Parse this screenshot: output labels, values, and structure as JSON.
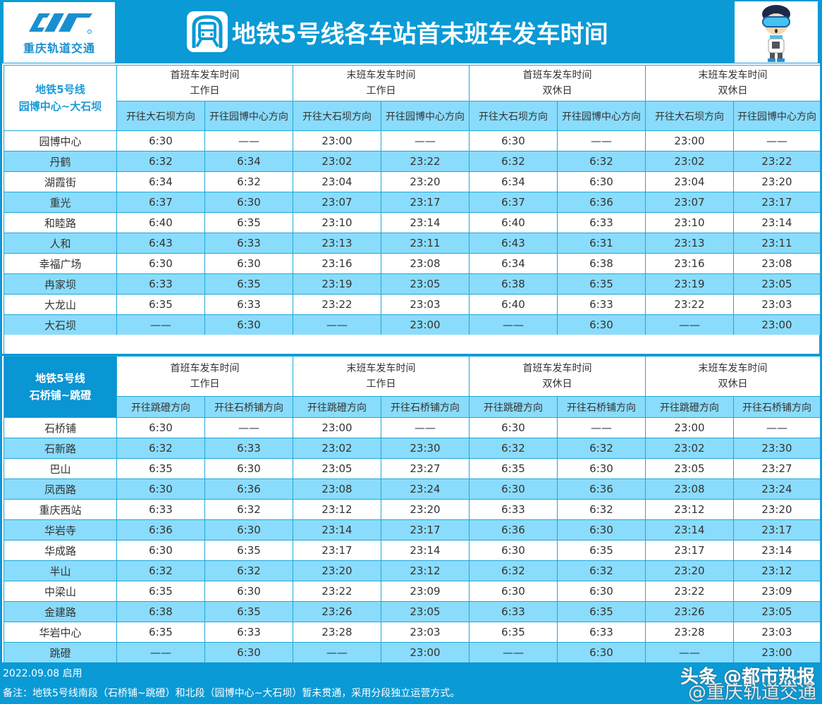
{
  "header": {
    "brand": "重庆轨道交通",
    "title": "地铁5号线各车站首末班车发车时间",
    "logo_icon": "cqrt-logo-icon",
    "title_icon": "metro-train-icon",
    "mascot_icon": "mascot-icon"
  },
  "tables": [
    {
      "line_name": "地铁5号线",
      "segment": "园博中心~大石坝",
      "groups": [
        {
          "label": "首班车发车时间",
          "day": "工作日"
        },
        {
          "label": "末班车发车时间",
          "day": "工作日"
        },
        {
          "label": "首班车发车时间",
          "day": "双休日"
        },
        {
          "label": "末班车发车时间",
          "day": "双休日"
        }
      ],
      "directions": [
        "开往大石坝方向",
        "开往园博中心方向",
        "开往大石坝方向",
        "开往园博中心方向",
        "开往大石坝方向",
        "开往园博中心方向",
        "开往大石坝方向",
        "开往园博中心方向"
      ],
      "rows": [
        {
          "station": "园博中心",
          "times": [
            "6:30",
            "——",
            "23:00",
            "——",
            "6:30",
            "——",
            "23:00",
            "——"
          ]
        },
        {
          "station": "丹鹤",
          "times": [
            "6:32",
            "6:34",
            "23:02",
            "23:22",
            "6:32",
            "6:32",
            "23:02",
            "23:22"
          ]
        },
        {
          "station": "湖霞街",
          "times": [
            "6:34",
            "6:32",
            "23:04",
            "23:20",
            "6:34",
            "6:30",
            "23:04",
            "23:20"
          ]
        },
        {
          "station": "重光",
          "times": [
            "6:37",
            "6:30",
            "23:07",
            "23:17",
            "6:37",
            "6:36",
            "23:07",
            "23:17"
          ]
        },
        {
          "station": "和睦路",
          "times": [
            "6:40",
            "6:35",
            "23:10",
            "23:14",
            "6:40",
            "6:33",
            "23:10",
            "23:14"
          ]
        },
        {
          "station": "人和",
          "times": [
            "6:43",
            "6:33",
            "23:13",
            "23:11",
            "6:43",
            "6:31",
            "23:13",
            "23:11"
          ]
        },
        {
          "station": "幸福广场",
          "times": [
            "6:30",
            "6:30",
            "23:16",
            "23:08",
            "6:34",
            "6:38",
            "23:16",
            "23:08"
          ]
        },
        {
          "station": "冉家坝",
          "times": [
            "6:33",
            "6:35",
            "23:19",
            "23:05",
            "6:38",
            "6:35",
            "23:19",
            "23:05"
          ]
        },
        {
          "station": "大龙山",
          "times": [
            "6:35",
            "6:33",
            "23:22",
            "23:03",
            "6:40",
            "6:33",
            "23:22",
            "23:03"
          ]
        },
        {
          "station": "大石坝",
          "times": [
            "——",
            "6:30",
            "——",
            "23:00",
            "——",
            "6:30",
            "——",
            "23:00"
          ]
        }
      ]
    },
    {
      "line_name": "地铁5号线",
      "segment": "石桥铺~跳磴",
      "groups": [
        {
          "label": "首班车发车时间",
          "day": "工作日"
        },
        {
          "label": "末班车发车时间",
          "day": "工作日"
        },
        {
          "label": "首班车发车时间",
          "day": "双休日"
        },
        {
          "label": "末班车发车时间",
          "day": "双休日"
        }
      ],
      "directions": [
        "开往跳磴方向",
        "开往石桥铺方向",
        "开往跳磴方向",
        "开往石桥铺方向",
        "开往跳磴方向",
        "开往石桥铺方向",
        "开往跳磴方向",
        "开往石桥铺方向"
      ],
      "rows": [
        {
          "station": "石桥铺",
          "times": [
            "6:30",
            "——",
            "23:00",
            "——",
            "6:30",
            "——",
            "23:00",
            "——"
          ]
        },
        {
          "station": "石新路",
          "times": [
            "6:32",
            "6:33",
            "23:02",
            "23:30",
            "6:32",
            "6:32",
            "23:02",
            "23:30"
          ]
        },
        {
          "station": "巴山",
          "times": [
            "6:35",
            "6:30",
            "23:05",
            "23:27",
            "6:35",
            "6:30",
            "23:05",
            "23:27"
          ]
        },
        {
          "station": "凤西路",
          "times": [
            "6:30",
            "6:36",
            "23:08",
            "23:24",
            "6:30",
            "6:36",
            "23:08",
            "23:24"
          ]
        },
        {
          "station": "重庆西站",
          "times": [
            "6:33",
            "6:32",
            "23:12",
            "23:20",
            "6:33",
            "6:32",
            "23:12",
            "23:20"
          ]
        },
        {
          "station": "华岩寺",
          "times": [
            "6:36",
            "6:30",
            "23:14",
            "23:17",
            "6:36",
            "6:30",
            "23:14",
            "23:17"
          ]
        },
        {
          "station": "华成路",
          "times": [
            "6:30",
            "6:35",
            "23:17",
            "23:14",
            "6:30",
            "6:35",
            "23:17",
            "23:14"
          ]
        },
        {
          "station": "半山",
          "times": [
            "6:32",
            "6:32",
            "23:20",
            "23:12",
            "6:32",
            "6:32",
            "23:20",
            "23:12"
          ]
        },
        {
          "station": "中梁山",
          "times": [
            "6:35",
            "6:30",
            "23:22",
            "23:09",
            "6:30",
            "6:30",
            "23:22",
            "23:09"
          ]
        },
        {
          "station": "金建路",
          "times": [
            "6:38",
            "6:35",
            "23:26",
            "23:05",
            "6:33",
            "6:35",
            "23:26",
            "23:05"
          ]
        },
        {
          "station": "华岩中心",
          "times": [
            "6:35",
            "6:33",
            "23:28",
            "23:03",
            "6:35",
            "6:33",
            "23:28",
            "23:03"
          ]
        },
        {
          "station": "跳磴",
          "times": [
            "——",
            "6:30",
            "——",
            "23:00",
            "——",
            "6:30",
            "——",
            "23:00"
          ]
        }
      ]
    }
  ],
  "footer": {
    "effective_date": "2022.09.08 启用",
    "note": "备注：地铁5号线南段（石桥铺~跳磴）和北段（园博中心~大石坝）暂未贯通，采用分段独立运营方式。",
    "watermark_primary": "头条 @都市热报",
    "watermark_secondary": "@重庆轨道交通"
  },
  "colors": {
    "brand_blue": "#0a9ad6",
    "row_alt": "#8adcfc",
    "grid": "#1fa7d9",
    "text": "#333333"
  }
}
